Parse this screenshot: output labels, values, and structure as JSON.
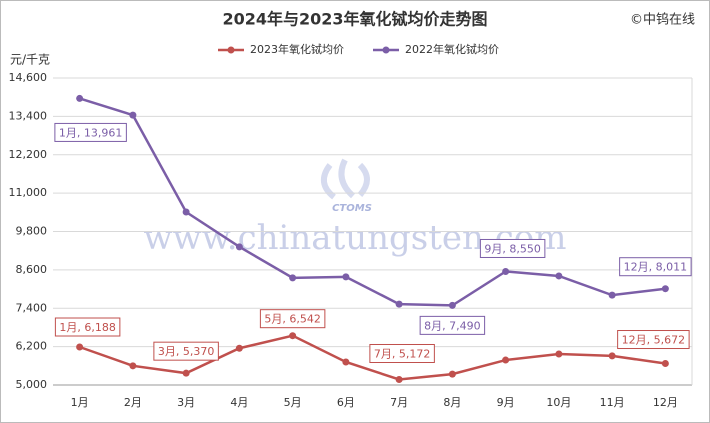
{
  "chart_data": {
    "type": "line",
    "title": "2024年与2023年氧化铽均价走势图",
    "copyright": "©中钨在线",
    "y_label": "元/千克",
    "watermark": "www.chinatungsten.com",
    "logo_text": "CTOMS",
    "categories": [
      "1月",
      "2月",
      "3月",
      "4月",
      "5月",
      "6月",
      "7月",
      "8月",
      "9月",
      "10月",
      "11月",
      "12月"
    ],
    "series": [
      {
        "name": "2023年氧化铽均价",
        "color": "#c0504d",
        "values": [
          6188,
          5600,
          5370,
          6150,
          6542,
          5720,
          5172,
          5340,
          5780,
          5970,
          5910,
          5672
        ],
        "value_labels": [
          "1月, 6,188",
          null,
          "3月, 5,370",
          null,
          "5月, 6,542",
          null,
          "7月, 5,172",
          null,
          null,
          null,
          null,
          "12月, 5,672"
        ]
      },
      {
        "name": "2022年氧化铽均价",
        "color": "#7b5ea7",
        "values": [
          13961,
          13440,
          10410,
          9320,
          8350,
          8380,
          7530,
          7490,
          8550,
          8410,
          7810,
          8011
        ],
        "value_labels": [
          "1月, 13,961",
          null,
          null,
          null,
          null,
          null,
          null,
          "8月, 7,490",
          "9月, 8,550",
          null,
          null,
          "12月, 8,011"
        ]
      }
    ],
    "ylim": [
      5000,
      14600
    ],
    "yticks": [
      {
        "value": 5000,
        "label": "5,000"
      },
      {
        "value": 6200,
        "label": "6,200"
      },
      {
        "value": 7400,
        "label": "7,400"
      },
      {
        "value": 8600,
        "label": "8,600"
      },
      {
        "value": 9800,
        "label": "9,800"
      },
      {
        "value": 11000,
        "label": "11,000"
      },
      {
        "value": 12200,
        "label": "12,200"
      },
      {
        "value": 13400,
        "label": "13,400"
      },
      {
        "value": 14600,
        "label": "14,600"
      }
    ],
    "grid": true
  }
}
